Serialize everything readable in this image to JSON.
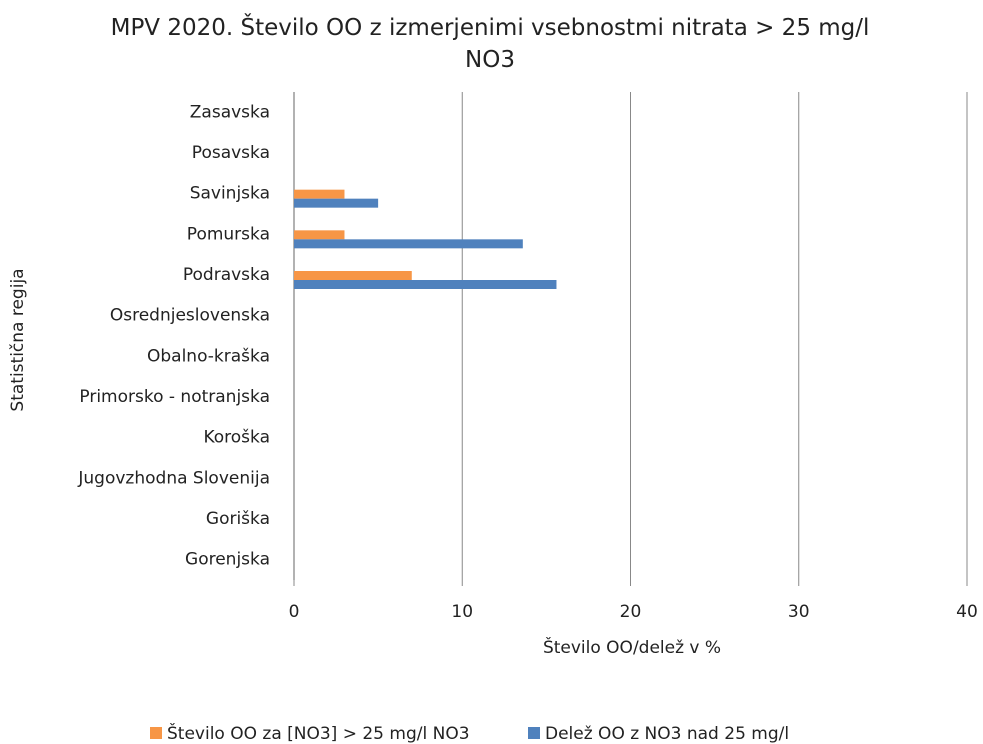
{
  "chart_data": {
    "type": "hbar",
    "title": "MPV 2020. Število OO z izmerjenimi vsebnostmi nitrata > 25 mg/l NO3",
    "x_label": "Število OO/delež  v %",
    "y_label": "Statistična regija",
    "categories": [
      "Zasavska",
      "Posavska",
      "Savinjska",
      "Pomurska",
      "Podravska",
      "Osrednjeslovenska",
      "Obalno-kraška",
      "Primorsko - notranjska",
      "Koroška",
      "Jugovzhodna Slovenija",
      "Goriška",
      "Gorenjska"
    ],
    "series": [
      {
        "name": "Število OO za [NO3] > 25 mg/l NO3",
        "color": "#f79646",
        "values": [
          null,
          null,
          3,
          3,
          7,
          null,
          null,
          null,
          null,
          null,
          null,
          null
        ]
      },
      {
        "name": "Delež OO z NO3 nad 25 mg/l",
        "color": "#4f81bd",
        "values": [
          null,
          null,
          5,
          13.6,
          15.6,
          null,
          null,
          null,
          null,
          null,
          null,
          null
        ]
      }
    ],
    "xlim": [
      0,
      40
    ],
    "xticks": [
      0,
      10,
      20,
      30,
      40
    ],
    "grid": true
  }
}
